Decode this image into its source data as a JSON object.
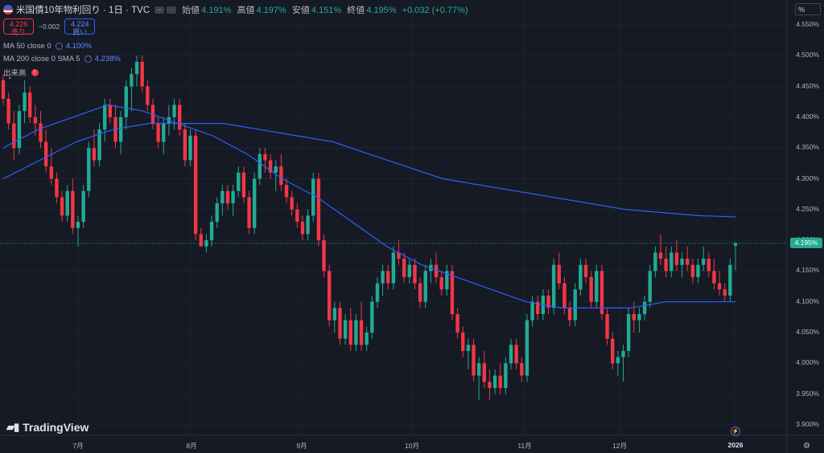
{
  "header": {
    "symbol_title": "米国債10年物利回り · 1日 · TVC",
    "ohlc": [
      {
        "key": "始値",
        "value": "4.191%"
      },
      {
        "key": "高値",
        "value": "4.197%"
      },
      {
        "key": "安値",
        "value": "4.151%"
      },
      {
        "key": "終値",
        "value": "4.195%"
      }
    ],
    "change": "+0.032 (+0.77%)"
  },
  "trade": {
    "sell_price": "4.226",
    "sell_label": "売り",
    "spread": "−0.002",
    "buy_price": "4.224",
    "buy_label": "買い"
  },
  "indicators": [
    {
      "label": "MA 50 close 0",
      "value": "4.100%",
      "color": "#2962ff"
    },
    {
      "label": "MA 200 close 0 SMA 5",
      "value": "4.238%",
      "color": "#2962ff"
    },
    {
      "label": "出来高",
      "value": ""
    }
  ],
  "price_axis": {
    "unit_button": "%",
    "labels": [
      "4.550%",
      "4.500%",
      "4.450%",
      "4.400%",
      "4.350%",
      "4.300%",
      "4.250%",
      "4.200%",
      "4.150%",
      "4.100%",
      "4.050%",
      "4.000%",
      "3.950%",
      "3.900%"
    ],
    "current_price_tag": "4.195%"
  },
  "time_axis": [
    "7月",
    "8月",
    "9月",
    "10月",
    "11月",
    "12月",
    "2026"
  ],
  "logo": "TradingView",
  "colors": {
    "up": "#22ab94",
    "down": "#f23645",
    "ma": "#2962ff",
    "background": "#161a25"
  },
  "chart_data": {
    "type": "candlestick",
    "title": "米国債10年物利回り · 1日 · TVC",
    "ylim": [
      3.88,
      4.57
    ],
    "candles": [
      {
        "o": 4.46,
        "h": 4.47,
        "l": 4.42,
        "c": 4.43
      },
      {
        "o": 4.43,
        "h": 4.44,
        "l": 4.38,
        "c": 4.39
      },
      {
        "o": 4.39,
        "h": 4.41,
        "l": 4.33,
        "c": 4.35
      },
      {
        "o": 4.35,
        "h": 4.42,
        "l": 4.34,
        "c": 4.41
      },
      {
        "o": 4.41,
        "h": 4.46,
        "l": 4.39,
        "c": 4.44
      },
      {
        "o": 4.44,
        "h": 4.45,
        "l": 4.39,
        "c": 4.4
      },
      {
        "o": 4.4,
        "h": 4.42,
        "l": 4.37,
        "c": 4.39
      },
      {
        "o": 4.39,
        "h": 4.41,
        "l": 4.35,
        "c": 4.36
      },
      {
        "o": 4.36,
        "h": 4.38,
        "l": 4.31,
        "c": 4.32
      },
      {
        "o": 4.32,
        "h": 4.35,
        "l": 4.29,
        "c": 4.3
      },
      {
        "o": 4.3,
        "h": 4.31,
        "l": 4.26,
        "c": 4.27
      },
      {
        "o": 4.27,
        "h": 4.28,
        "l": 4.23,
        "c": 4.24
      },
      {
        "o": 4.24,
        "h": 4.29,
        "l": 4.23,
        "c": 4.28
      },
      {
        "o": 4.28,
        "h": 4.3,
        "l": 4.21,
        "c": 4.22
      },
      {
        "o": 4.22,
        "h": 4.24,
        "l": 4.19,
        "c": 4.23
      },
      {
        "o": 4.23,
        "h": 4.29,
        "l": 4.22,
        "c": 4.28
      },
      {
        "o": 4.28,
        "h": 4.36,
        "l": 4.27,
        "c": 4.35
      },
      {
        "o": 4.35,
        "h": 4.38,
        "l": 4.32,
        "c": 4.33
      },
      {
        "o": 4.33,
        "h": 4.39,
        "l": 4.32,
        "c": 4.38
      },
      {
        "o": 4.38,
        "h": 4.43,
        "l": 4.36,
        "c": 4.42
      },
      {
        "o": 4.42,
        "h": 4.43,
        "l": 4.39,
        "c": 4.4
      },
      {
        "o": 4.4,
        "h": 4.42,
        "l": 4.35,
        "c": 4.36
      },
      {
        "o": 4.36,
        "h": 4.41,
        "l": 4.34,
        "c": 4.4
      },
      {
        "o": 4.4,
        "h": 4.46,
        "l": 4.38,
        "c": 4.45
      },
      {
        "o": 4.45,
        "h": 4.48,
        "l": 4.41,
        "c": 4.47
      },
      {
        "o": 4.47,
        "h": 4.5,
        "l": 4.45,
        "c": 4.49
      },
      {
        "o": 4.49,
        "h": 4.5,
        "l": 4.44,
        "c": 4.45
      },
      {
        "o": 4.45,
        "h": 4.46,
        "l": 4.41,
        "c": 4.42
      },
      {
        "o": 4.42,
        "h": 4.43,
        "l": 4.38,
        "c": 4.39
      },
      {
        "o": 4.39,
        "h": 4.4,
        "l": 4.35,
        "c": 4.36
      },
      {
        "o": 4.36,
        "h": 4.4,
        "l": 4.34,
        "c": 4.39
      },
      {
        "o": 4.39,
        "h": 4.42,
        "l": 4.37,
        "c": 4.4
      },
      {
        "o": 4.4,
        "h": 4.43,
        "l": 4.38,
        "c": 4.42
      },
      {
        "o": 4.42,
        "h": 4.43,
        "l": 4.37,
        "c": 4.38
      },
      {
        "o": 4.38,
        "h": 4.39,
        "l": 4.32,
        "c": 4.33
      },
      {
        "o": 4.33,
        "h": 4.38,
        "l": 4.32,
        "c": 4.37
      },
      {
        "o": 4.37,
        "h": 4.38,
        "l": 4.2,
        "c": 4.21
      },
      {
        "o": 4.21,
        "h": 4.22,
        "l": 4.19,
        "c": 4.19
      },
      {
        "o": 4.19,
        "h": 4.21,
        "l": 4.18,
        "c": 4.2
      },
      {
        "o": 4.2,
        "h": 4.24,
        "l": 4.19,
        "c": 4.23
      },
      {
        "o": 4.23,
        "h": 4.27,
        "l": 4.22,
        "c": 4.26
      },
      {
        "o": 4.26,
        "h": 4.29,
        "l": 4.24,
        "c": 4.28
      },
      {
        "o": 4.28,
        "h": 4.29,
        "l": 4.25,
        "c": 4.26
      },
      {
        "o": 4.26,
        "h": 4.29,
        "l": 4.24,
        "c": 4.28
      },
      {
        "o": 4.28,
        "h": 4.32,
        "l": 4.27,
        "c": 4.31
      },
      {
        "o": 4.31,
        "h": 4.32,
        "l": 4.26,
        "c": 4.27
      },
      {
        "o": 4.27,
        "h": 4.28,
        "l": 4.21,
        "c": 4.22
      },
      {
        "o": 4.22,
        "h": 4.31,
        "l": 4.21,
        "c": 4.3
      },
      {
        "o": 4.3,
        "h": 4.35,
        "l": 4.29,
        "c": 4.34
      },
      {
        "o": 4.34,
        "h": 4.35,
        "l": 4.31,
        "c": 4.33
      },
      {
        "o": 4.33,
        "h": 4.34,
        "l": 4.3,
        "c": 4.31
      },
      {
        "o": 4.31,
        "h": 4.33,
        "l": 4.28,
        "c": 4.32
      },
      {
        "o": 4.32,
        "h": 4.34,
        "l": 4.28,
        "c": 4.29
      },
      {
        "o": 4.29,
        "h": 4.3,
        "l": 4.26,
        "c": 4.27
      },
      {
        "o": 4.27,
        "h": 4.28,
        "l": 4.24,
        "c": 4.25
      },
      {
        "o": 4.25,
        "h": 4.26,
        "l": 4.22,
        "c": 4.23
      },
      {
        "o": 4.23,
        "h": 4.24,
        "l": 4.2,
        "c": 4.21
      },
      {
        "o": 4.21,
        "h": 4.25,
        "l": 4.2,
        "c": 4.24
      },
      {
        "o": 4.24,
        "h": 4.31,
        "l": 4.23,
        "c": 4.3
      },
      {
        "o": 4.3,
        "h": 4.31,
        "l": 4.19,
        "c": 4.2
      },
      {
        "o": 4.2,
        "h": 4.21,
        "l": 4.14,
        "c": 4.15
      },
      {
        "o": 4.15,
        "h": 4.16,
        "l": 4.06,
        "c": 4.07
      },
      {
        "o": 4.07,
        "h": 4.1,
        "l": 4.05,
        "c": 4.09
      },
      {
        "o": 4.09,
        "h": 4.1,
        "l": 4.03,
        "c": 4.04
      },
      {
        "o": 4.04,
        "h": 4.08,
        "l": 4.03,
        "c": 4.07
      },
      {
        "o": 4.07,
        "h": 4.09,
        "l": 4.02,
        "c": 4.03
      },
      {
        "o": 4.03,
        "h": 4.08,
        "l": 4.02,
        "c": 4.07
      },
      {
        "o": 4.07,
        "h": 4.1,
        "l": 4.02,
        "c": 4.03
      },
      {
        "o": 4.03,
        "h": 4.06,
        "l": 4.02,
        "c": 4.05
      },
      {
        "o": 4.05,
        "h": 4.11,
        "l": 4.04,
        "c": 4.1
      },
      {
        "o": 4.1,
        "h": 4.14,
        "l": 4.09,
        "c": 4.13
      },
      {
        "o": 4.13,
        "h": 4.16,
        "l": 4.11,
        "c": 4.15
      },
      {
        "o": 4.15,
        "h": 4.16,
        "l": 4.12,
        "c": 4.13
      },
      {
        "o": 4.13,
        "h": 4.19,
        "l": 4.12,
        "c": 4.18
      },
      {
        "o": 4.18,
        "h": 4.2,
        "l": 4.16,
        "c": 4.17
      },
      {
        "o": 4.17,
        "h": 4.18,
        "l": 4.13,
        "c": 4.14
      },
      {
        "o": 4.14,
        "h": 4.17,
        "l": 4.13,
        "c": 4.16
      },
      {
        "o": 4.16,
        "h": 4.17,
        "l": 4.12,
        "c": 4.13
      },
      {
        "o": 4.13,
        "h": 4.14,
        "l": 4.09,
        "c": 4.1
      },
      {
        "o": 4.1,
        "h": 4.16,
        "l": 4.09,
        "c": 4.15
      },
      {
        "o": 4.15,
        "h": 4.17,
        "l": 4.13,
        "c": 4.16
      },
      {
        "o": 4.16,
        "h": 4.18,
        "l": 4.13,
        "c": 4.14
      },
      {
        "o": 4.14,
        "h": 4.15,
        "l": 4.11,
        "c": 4.12
      },
      {
        "o": 4.12,
        "h": 4.16,
        "l": 4.11,
        "c": 4.15
      },
      {
        "o": 4.15,
        "h": 4.16,
        "l": 4.07,
        "c": 4.08
      },
      {
        "o": 4.08,
        "h": 4.09,
        "l": 4.04,
        "c": 4.05
      },
      {
        "o": 4.05,
        "h": 4.06,
        "l": 4.01,
        "c": 4.02
      },
      {
        "o": 4.02,
        "h": 4.04,
        "l": 3.99,
        "c": 4.03
      },
      {
        "o": 4.03,
        "h": 4.04,
        "l": 3.97,
        "c": 3.98
      },
      {
        "o": 3.98,
        "h": 4.01,
        "l": 3.94,
        "c": 4.0
      },
      {
        "o": 4.0,
        "h": 4.02,
        "l": 3.96,
        "c": 3.97
      },
      {
        "o": 3.97,
        "h": 3.99,
        "l": 3.94,
        "c": 3.96
      },
      {
        "o": 3.96,
        "h": 3.99,
        "l": 3.95,
        "c": 3.98
      },
      {
        "o": 3.98,
        "h": 4.0,
        "l": 3.95,
        "c": 3.96
      },
      {
        "o": 3.96,
        "h": 4.01,
        "l": 3.95,
        "c": 4.0
      },
      {
        "o": 4.0,
        "h": 4.04,
        "l": 3.99,
        "c": 4.03
      },
      {
        "o": 4.03,
        "h": 4.04,
        "l": 3.99,
        "c": 4.0
      },
      {
        "o": 4.0,
        "h": 4.01,
        "l": 3.97,
        "c": 3.98
      },
      {
        "o": 3.98,
        "h": 4.08,
        "l": 3.97,
        "c": 4.07
      },
      {
        "o": 4.07,
        "h": 4.11,
        "l": 4.06,
        "c": 4.1
      },
      {
        "o": 4.1,
        "h": 4.11,
        "l": 4.07,
        "c": 4.08
      },
      {
        "o": 4.08,
        "h": 4.12,
        "l": 4.07,
        "c": 4.11
      },
      {
        "o": 4.11,
        "h": 4.12,
        "l": 4.08,
        "c": 4.09
      },
      {
        "o": 4.09,
        "h": 4.17,
        "l": 4.08,
        "c": 4.16
      },
      {
        "o": 4.16,
        "h": 4.18,
        "l": 4.12,
        "c": 4.13
      },
      {
        "o": 4.13,
        "h": 4.14,
        "l": 4.08,
        "c": 4.09
      },
      {
        "o": 4.09,
        "h": 4.1,
        "l": 4.06,
        "c": 4.07
      },
      {
        "o": 4.07,
        "h": 4.13,
        "l": 4.06,
        "c": 4.12
      },
      {
        "o": 4.12,
        "h": 4.17,
        "l": 4.11,
        "c": 4.16
      },
      {
        "o": 4.16,
        "h": 4.17,
        "l": 4.13,
        "c": 4.14
      },
      {
        "o": 4.14,
        "h": 4.15,
        "l": 4.09,
        "c": 4.1
      },
      {
        "o": 4.1,
        "h": 4.16,
        "l": 4.09,
        "c": 4.15
      },
      {
        "o": 4.15,
        "h": 4.16,
        "l": 4.07,
        "c": 4.08
      },
      {
        "o": 4.08,
        "h": 4.09,
        "l": 4.03,
        "c": 4.04
      },
      {
        "o": 4.04,
        "h": 4.05,
        "l": 3.99,
        "c": 4.0
      },
      {
        "o": 4.0,
        "h": 4.02,
        "l": 3.98,
        "c": 4.01
      },
      {
        "o": 4.01,
        "h": 4.03,
        "l": 3.97,
        "c": 4.02
      },
      {
        "o": 4.02,
        "h": 4.09,
        "l": 4.01,
        "c": 4.08
      },
      {
        "o": 4.08,
        "h": 4.1,
        "l": 4.05,
        "c": 4.07
      },
      {
        "o": 4.07,
        "h": 4.09,
        "l": 4.05,
        "c": 4.08
      },
      {
        "o": 4.08,
        "h": 4.11,
        "l": 4.07,
        "c": 4.1
      },
      {
        "o": 4.1,
        "h": 4.16,
        "l": 4.09,
        "c": 4.15
      },
      {
        "o": 4.15,
        "h": 4.19,
        "l": 4.14,
        "c": 4.18
      },
      {
        "o": 4.18,
        "h": 4.21,
        "l": 4.16,
        "c": 4.17
      },
      {
        "o": 4.17,
        "h": 4.19,
        "l": 4.14,
        "c": 4.15
      },
      {
        "o": 4.15,
        "h": 4.19,
        "l": 4.14,
        "c": 4.18
      },
      {
        "o": 4.18,
        "h": 4.2,
        "l": 4.15,
        "c": 4.16
      },
      {
        "o": 4.16,
        "h": 4.18,
        "l": 4.14,
        "c": 4.17
      },
      {
        "o": 4.17,
        "h": 4.19,
        "l": 4.15,
        "c": 4.16
      },
      {
        "o": 4.16,
        "h": 4.17,
        "l": 4.13,
        "c": 4.14
      },
      {
        "o": 4.14,
        "h": 4.17,
        "l": 4.13,
        "c": 4.16
      },
      {
        "o": 4.16,
        "h": 4.19,
        "l": 4.15,
        "c": 4.17
      },
      {
        "o": 4.17,
        "h": 4.18,
        "l": 4.14,
        "c": 4.15
      },
      {
        "o": 4.15,
        "h": 4.17,
        "l": 4.12,
        "c": 4.13
      },
      {
        "o": 4.13,
        "h": 4.15,
        "l": 4.11,
        "c": 4.12
      },
      {
        "o": 4.12,
        "h": 4.13,
        "l": 4.1,
        "c": 4.11
      },
      {
        "o": 4.11,
        "h": 4.17,
        "l": 4.1,
        "c": 4.16
      },
      {
        "o": 4.191,
        "h": 4.197,
        "l": 4.151,
        "c": 4.195
      }
    ],
    "ma50": [
      4.35,
      4.38,
      4.4,
      4.42,
      4.41,
      4.39,
      4.37,
      4.34,
      4.3,
      4.27,
      4.23,
      4.19,
      4.16,
      4.14,
      4.12,
      4.1,
      4.09,
      4.09,
      4.09,
      4.1,
      4.1,
      4.1
    ],
    "ma200": [
      4.3,
      4.33,
      4.36,
      4.38,
      4.39,
      4.39,
      4.39,
      4.38,
      4.37,
      4.36,
      4.34,
      4.32,
      4.3,
      4.29,
      4.28,
      4.27,
      4.26,
      4.25,
      4.245,
      4.24,
      4.238
    ]
  }
}
